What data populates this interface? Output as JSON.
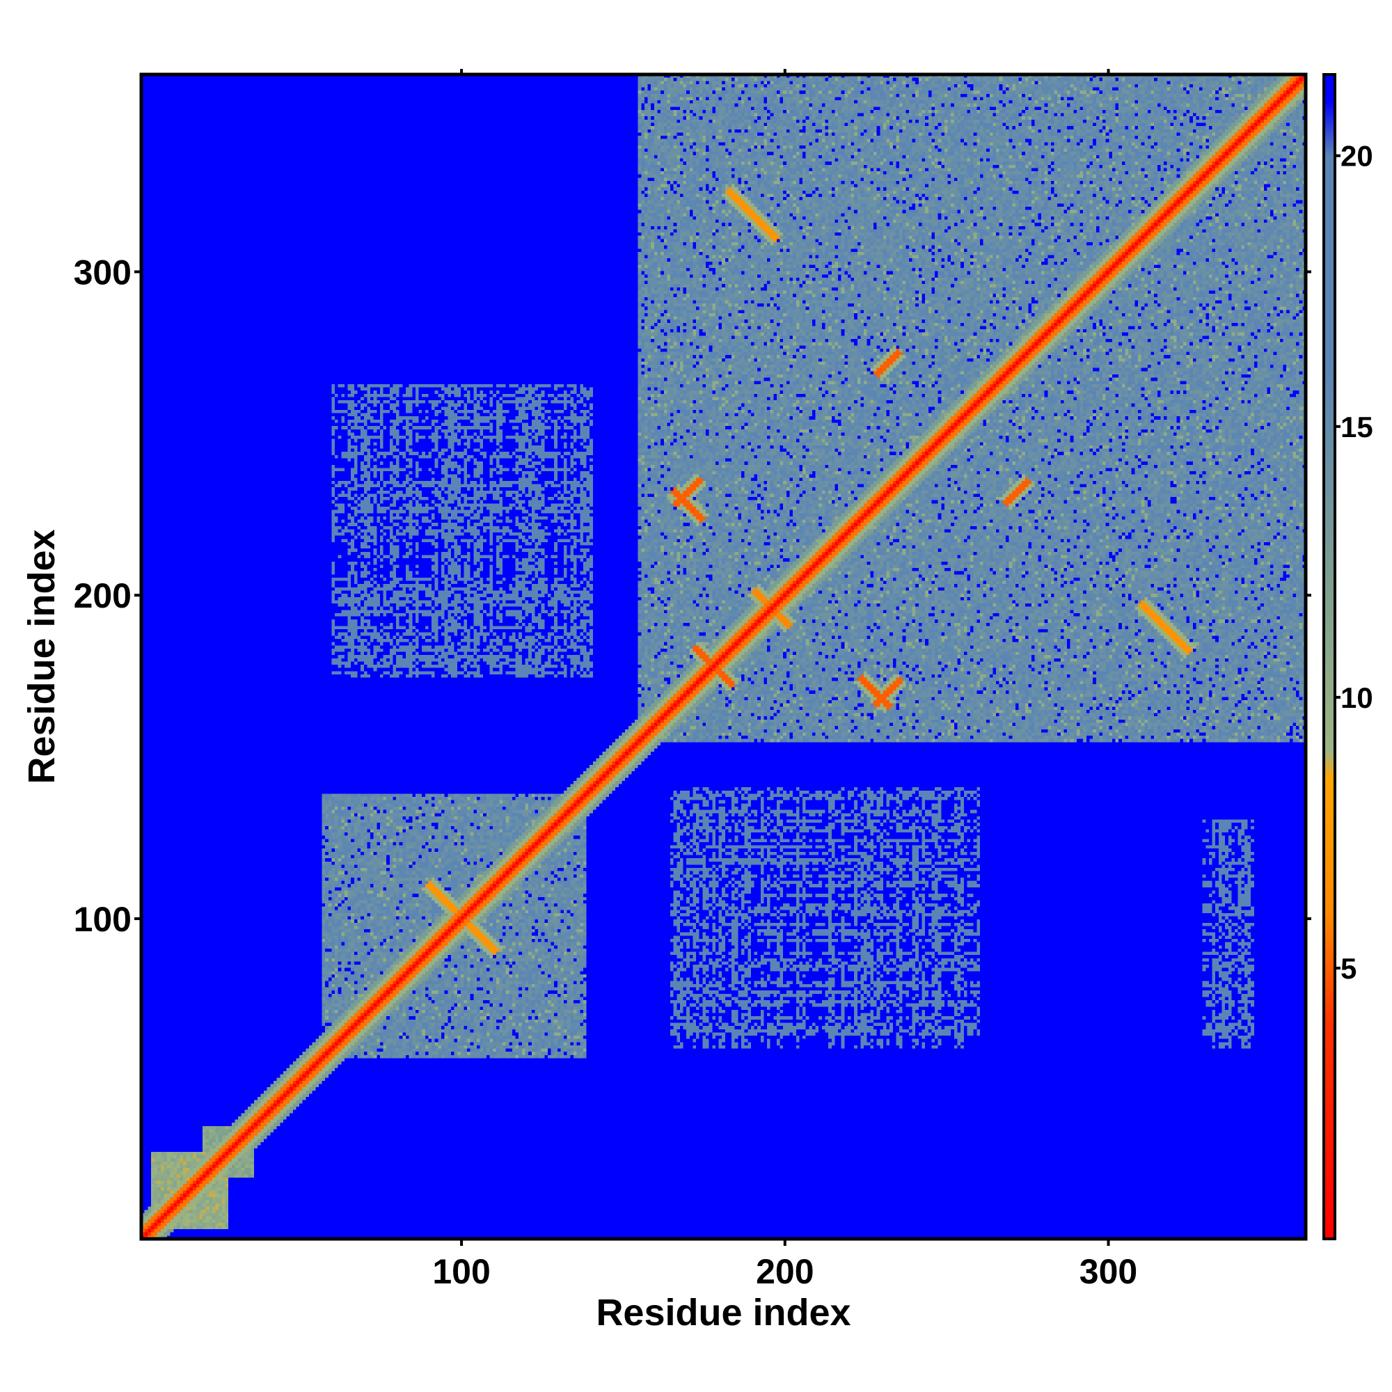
{
  "chart_data": {
    "type": "heatmap",
    "title": "",
    "xlabel": "Residue index",
    "ylabel": "Residue index",
    "xlim": [
      1,
      361
    ],
    "ylim": [
      1,
      361
    ],
    "x_ticks": [
      100,
      200,
      300
    ],
    "y_ticks": [
      100,
      200,
      300
    ],
    "grid": false,
    "matrix": "residue-residue distance map (symmetric); values are distances, colour-capped at ~21",
    "colorbar": {
      "min": 0,
      "max": 21.5,
      "ticks": [
        5,
        10,
        15,
        20
      ],
      "position": "right",
      "stops": [
        {
          "value": 0,
          "color": "#ff0000"
        },
        {
          "value": 4,
          "color": "#ff3300"
        },
        {
          "value": 6,
          "color": "#ff8800"
        },
        {
          "value": 8.5,
          "color": "#ffa500"
        },
        {
          "value": 9,
          "color": "#9db582"
        },
        {
          "value": 12,
          "color": "#7fa08f"
        },
        {
          "value": 16,
          "color": "#5b85b5"
        },
        {
          "value": 20,
          "color": "#5b85b5"
        },
        {
          "value": 21,
          "color": "#0000ff"
        }
      ]
    },
    "domain_blocks": [
      {
        "x": [
          4,
          27
        ],
        "y": [
          4,
          27
        ],
        "level": 10
      },
      {
        "x": [
          20,
          35
        ],
        "y": [
          20,
          35
        ],
        "level": 11
      },
      {
        "x": [
          57,
          138
        ],
        "y": [
          57,
          138
        ],
        "level": 15
      },
      {
        "x": [
          155,
          361
        ],
        "y": [
          155,
          361
        ],
        "level": 15
      }
    ],
    "helix_contacts": [
      {
        "center": [
          178,
          178
        ],
        "length": 18,
        "direction": "anti",
        "value": 5
      },
      {
        "center": [
          196,
          196
        ],
        "length": 16,
        "direction": "anti",
        "value": 6
      },
      {
        "center": [
          228,
          170
        ],
        "length": 14,
        "direction": "anti",
        "value": 5
      },
      {
        "center": [
          170,
          228
        ],
        "length": 14,
        "direction": "anti",
        "value": 5
      },
      {
        "center": [
          232,
          170
        ],
        "length": 12,
        "direction": "parallel",
        "value": 5
      },
      {
        "center": [
          170,
          232
        ],
        "length": 12,
        "direction": "parallel",
        "value": 5
      },
      {
        "center": [
          272,
          232
        ],
        "length": 10,
        "direction": "parallel",
        "value": 5
      },
      {
        "center": [
          232,
          272
        ],
        "length": 10,
        "direction": "parallel",
        "value": 5
      },
      {
        "center": [
          100,
          100
        ],
        "length": 30,
        "direction": "anti",
        "value": 7
      },
      {
        "center": [
          318,
          190
        ],
        "length": 22,
        "direction": "anti",
        "value": 7
      },
      {
        "center": [
          190,
          318
        ],
        "length": 22,
        "direction": "anti",
        "value": 7
      }
    ],
    "cross_domain_patches": [
      {
        "x": [
          60,
          140
        ],
        "y": [
          175,
          265
        ],
        "level": 18
      },
      {
        "x": [
          165,
          260
        ],
        "y": [
          60,
          140
        ],
        "level": 18
      },
      {
        "x": [
          330,
          345
        ],
        "y": [
          60,
          130
        ],
        "level": 19
      }
    ]
  }
}
